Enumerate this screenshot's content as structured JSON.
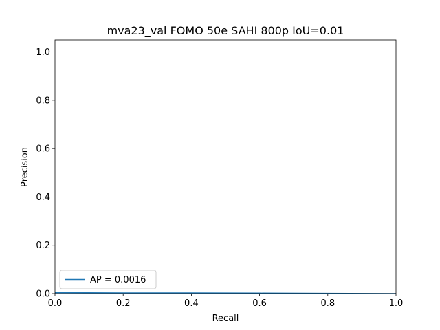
{
  "chart_data": {
    "type": "line",
    "title": "mva23_val FOMO 50e SAHI 800p IoU=0.01",
    "xlabel": "Recall",
    "ylabel": "Precision",
    "xlim": [
      0,
      1.0
    ],
    "ylim": [
      0,
      1.05
    ],
    "xticks": [
      0.0,
      0.2,
      0.4,
      0.6,
      0.8,
      1.0
    ],
    "xtick_labels": [
      "0.0",
      "0.2",
      "0.4",
      "0.6",
      "0.8",
      "1.0"
    ],
    "yticks": [
      0.0,
      0.2,
      0.4,
      0.6,
      0.8,
      1.0
    ],
    "ytick_labels": [
      "0.0",
      "0.2",
      "0.4",
      "0.6",
      "0.8",
      "1.0"
    ],
    "grid": false,
    "legend_position": "lower-left",
    "series": [
      {
        "name": "AP = 0.0016",
        "color": "#1f77b4",
        "x": [
          0.0,
          0.2,
          0.4,
          0.6,
          0.8,
          1.0
        ],
        "y": [
          0.004,
          0.003,
          0.003,
          0.002,
          0.001,
          0.0
        ]
      }
    ]
  }
}
